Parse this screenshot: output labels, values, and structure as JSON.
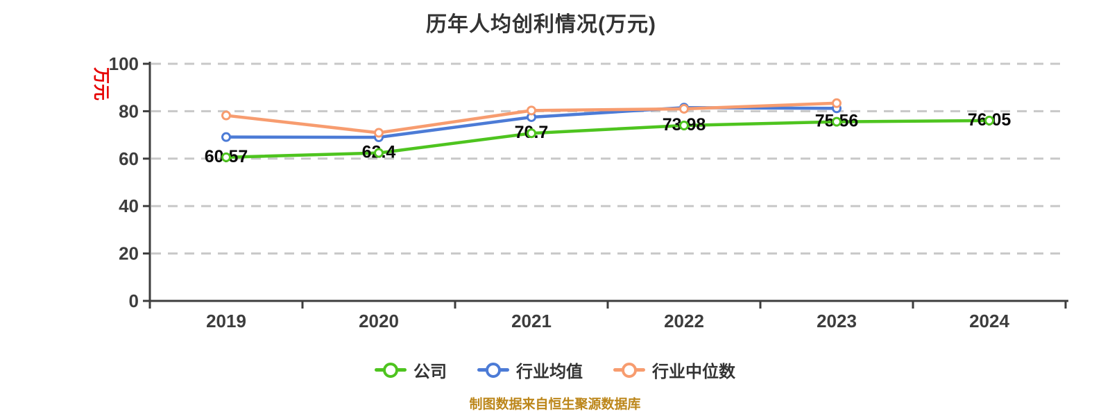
{
  "title": "历年人均创利情况(万元)",
  "y_axis_name": "万元",
  "source_note": "制图数据来自恒生聚源数据库",
  "colors": {
    "title": "#333333",
    "axis": "#3d3d3d",
    "grid": "#c8c8c8",
    "tick_label": "#3d3d3d",
    "y_axis_name": "#e60000",
    "value_label": "#0a0a0a",
    "source_note": "#bc861a",
    "marker_fill": "#ffffff",
    "background": "#ffffff",
    "series_company": "#4ec41f",
    "series_industry_mean": "#4c7bd6",
    "series_industry_median": "#f79c6f"
  },
  "legend": {
    "items": [
      "公司",
      "行业均值",
      "行业中位数"
    ]
  },
  "chart_data": {
    "type": "line",
    "title": "历年人均创利情况(万元)",
    "xlabel": "",
    "ylabel": "万元",
    "categories": [
      "2019",
      "2020",
      "2021",
      "2022",
      "2023",
      "2024"
    ],
    "series": [
      {
        "name": "公司",
        "color": "#4ec41f",
        "values": [
          60.57,
          62.4,
          70.7,
          73.98,
          75.56,
          76.05
        ],
        "labels": [
          "60.57",
          "62.4",
          "70.7",
          "73.98",
          "75.56",
          "76.05"
        ]
      },
      {
        "name": "行业均值",
        "color": "#4c7bd6",
        "values": [
          69.1,
          69.0,
          77.5,
          81.5,
          81.2,
          null
        ]
      },
      {
        "name": "行业中位数",
        "color": "#f79c6f",
        "values": [
          78.2,
          70.9,
          80.3,
          81.0,
          83.4,
          null
        ]
      }
    ],
    "ylim": [
      0,
      100
    ],
    "yticks": [
      0,
      20,
      40,
      60,
      80,
      100
    ],
    "grid": "horizontal dashed",
    "legend_position": "bottom"
  }
}
